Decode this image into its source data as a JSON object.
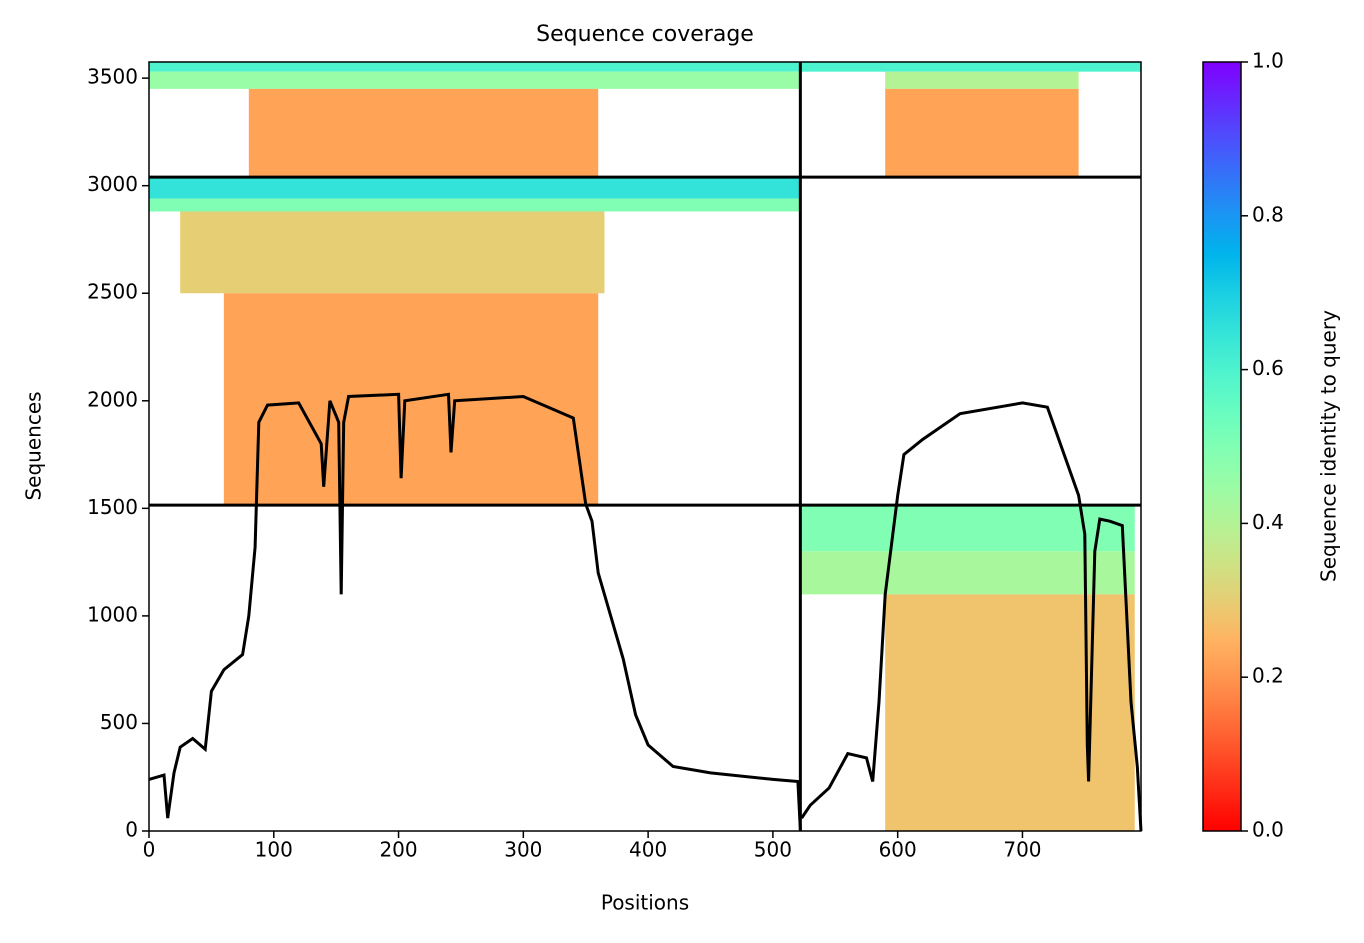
{
  "chart_data": {
    "type": "coverage",
    "title": "Sequence coverage",
    "xlabel": "Positions",
    "ylabel": "Sequences",
    "colorbar_label": "Sequence identity to query",
    "colormap": "rainbow_r",
    "xlim": [
      0,
      795
    ],
    "ylim": [
      0,
      3575
    ],
    "xticks": [
      0,
      100,
      200,
      300,
      400,
      500,
      600,
      700
    ],
    "yticks": [
      0,
      500,
      1000,
      1500,
      2000,
      2500,
      3000,
      3500
    ],
    "clim": [
      0,
      1
    ],
    "cticks": [
      {
        "value": 0,
        "label": "0.0"
      },
      0.2,
      0.4,
      0.6,
      0.8,
      {
        "value": 1,
        "label": "1.0"
      }
    ],
    "x_dividers": [
      522
    ],
    "y_dividers": [
      1515,
      3040
    ],
    "blocks": [
      {
        "x": [
          0,
          795
        ],
        "y": [
          3530,
          3575
        ],
        "identity": 0.6
      },
      {
        "x": [
          0,
          522
        ],
        "y": [
          3450,
          3530
        ],
        "identity": 0.45
      },
      {
        "x": [
          80,
          360
        ],
        "y": [
          3040,
          3450
        ],
        "identity": 0.22
      },
      {
        "x": [
          590,
          745
        ],
        "y": [
          3450,
          3530
        ],
        "identity": 0.4
      },
      {
        "x": [
          590,
          745
        ],
        "y": [
          3040,
          3450
        ],
        "identity": 0.22
      },
      {
        "x": [
          0,
          522
        ],
        "y": [
          2940,
          3040
        ],
        "identity": 0.65
      },
      {
        "x": [
          0,
          522
        ],
        "y": [
          2880,
          2940
        ],
        "identity": 0.5
      },
      {
        "x": [
          25,
          365
        ],
        "y": [
          2500,
          2880
        ],
        "identity": 0.3
      },
      {
        "x": [
          60,
          360
        ],
        "y": [
          1515,
          2500
        ],
        "identity": 0.22
      },
      {
        "x": [
          523,
          790
        ],
        "y": [
          1300,
          1515
        ],
        "identity": 0.5
      },
      {
        "x": [
          523,
          790
        ],
        "y": [
          1100,
          1300
        ],
        "identity": 0.42
      },
      {
        "x": [
          590,
          790
        ],
        "y": [
          0,
          1100
        ],
        "identity": 0.28
      }
    ],
    "series": [
      {
        "name": "coverage",
        "color": "#000000",
        "x": [
          0,
          12,
          15,
          20,
          25,
          35,
          45,
          50,
          60,
          75,
          80,
          85,
          88,
          95,
          120,
          138,
          140,
          145,
          152,
          154,
          156,
          160,
          200,
          202,
          205,
          240,
          242,
          245,
          300,
          340,
          350,
          355,
          360,
          380,
          390,
          400,
          420,
          450,
          500,
          520,
          522,
          null,
          523,
          530,
          545,
          560,
          575,
          580,
          585,
          590,
          600,
          605,
          620,
          650,
          700,
          720,
          745,
          750,
          752,
          753,
          758,
          762,
          770,
          780,
          787,
          792,
          795
        ],
        "values": [
          240,
          260,
          60,
          270,
          390,
          430,
          380,
          650,
          750,
          820,
          1000,
          1320,
          1900,
          1980,
          1990,
          1800,
          1600,
          2000,
          1900,
          1100,
          1900,
          2020,
          2030,
          1640,
          2000,
          2030,
          1760,
          2000,
          2020,
          1920,
          1520,
          1440,
          1200,
          800,
          540,
          400,
          300,
          270,
          240,
          230,
          0,
          null,
          60,
          120,
          200,
          360,
          340,
          230,
          600,
          1100,
          1560,
          1750,
          1820,
          1940,
          1990,
          1970,
          1560,
          1380,
          400,
          230,
          1300,
          1450,
          1440,
          1420,
          600,
          300,
          0
        ]
      }
    ]
  }
}
